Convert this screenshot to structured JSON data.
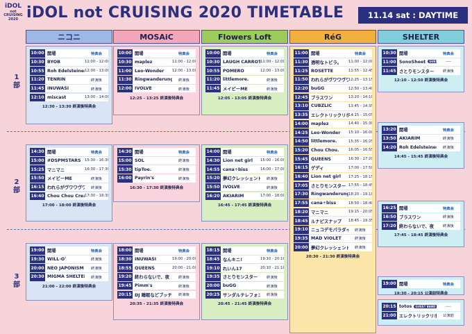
{
  "logo": {
    "line1": "iDOL",
    "line2": "not CRUISING",
    "line3": "2020"
  },
  "title": "iDOL not CRUISING 2020 TIMETABLE",
  "date": "11.14 sat : DAYTIME",
  "colors": {
    "navy": "#2a2f7e"
  },
  "parts": [
    "1\n部",
    "2\n部",
    "3\n部"
  ],
  "venues": [
    {
      "name": "ニコニ",
      "header_bg": "#9db8e6",
      "block_bg": "#d9e4f5",
      "header_color": "#2a2f7e"
    },
    {
      "name": "MOSAiC",
      "header_bg": "#f3a8b9",
      "block_bg": "#f9d3dd",
      "header_color": "#1b1f4a"
    },
    {
      "name": "Flowers Loft",
      "header_bg": "#9ccc5c",
      "block_bg": "#d9eec0",
      "header_color": "#1b1f4a"
    },
    {
      "name": "RéG",
      "header_bg": "#f2b13c",
      "block_bg": "#fbe5a8",
      "header_color": "#1b1f4a"
    },
    {
      "name": "SHELTER",
      "header_bg": "#7fd0dc",
      "block_bg": "#cdeef2",
      "header_color": "#1b1f4a"
    }
  ],
  "blocks": [
    {
      "venue": 0,
      "rows": [
        {
          "t": "10:00",
          "n": "開場",
          "s": "特典会"
        },
        {
          "t": "10:30",
          "n": "BYOB",
          "s": "11:00 - 12:00"
        },
        {
          "t": "10:55",
          "n": "Roh Edelsteinen",
          "s": "12:00 - 13:00"
        },
        {
          "t": "11:20",
          "n": "TENRIN",
          "s": "終演後"
        },
        {
          "t": "11:45",
          "n": "INUWASI",
          "s": "終演後"
        },
        {
          "t": "12:10",
          "n": "miscast",
          "s": "13:00 - 14:00"
        }
      ],
      "footer": "12:30 - 13:30 終演後特典会"
    },
    {
      "venue": 1,
      "rows": [
        {
          "t": "10:00",
          "n": "開場",
          "s": "特典会"
        },
        {
          "t": "10:30",
          "n": "maplez",
          "s": "11:00 - 12:00"
        },
        {
          "t": "11:00",
          "n": "Leo-Wonder",
          "s": "12:00 - 13:00"
        },
        {
          "t": "11:30",
          "n": "Ringwanderung",
          "s": "終演後"
        },
        {
          "t": "12:00",
          "n": "IVOLVE",
          "s": "終演後"
        }
      ],
      "footer": "12:25 - 13:25 終演後特典会"
    },
    {
      "venue": 2,
      "rows": [
        {
          "t": "10:00",
          "n": "開場",
          "s": "特典会"
        },
        {
          "t": "10:30",
          "n": "LAUGH CARROT",
          "s": "11:00 - 12:00"
        },
        {
          "t": "10:55",
          "n": "POMERO",
          "s": "12:00 - 13:00"
        },
        {
          "t": "11:20",
          "n": "littlemore.",
          "s": "終演後"
        },
        {
          "t": "11:45",
          "n": "メイビーME",
          "s": "終演後"
        }
      ],
      "footer": "12:05 - 13:05 終演後特典会"
    },
    {
      "venue": 4,
      "rows": [
        {
          "t": "10:30",
          "n": "開場",
          "s": "特典会"
        },
        {
          "t": "11:00",
          "n": "SonoSheet",
          "s": "----",
          "badge": "GUEST BAND"
        },
        {
          "t": "11:45",
          "n": "さとりモンスター",
          "s": "終演後"
        }
      ],
      "footer": "12:10 - 12:50 終演後特典会"
    },
    {
      "venue": 0,
      "rows": [
        {
          "t": "14:30",
          "n": "開場",
          "s": "特典会"
        },
        {
          "t": "15:00",
          "n": "#DSPMSTARS",
          "s": "15:30 - 16:30"
        },
        {
          "t": "15:25",
          "n": "マニマニ",
          "s": "16:30 - 17:30"
        },
        {
          "t": "15:50",
          "n": "メイビーME",
          "s": "終演後"
        },
        {
          "t": "16:15",
          "n": "われらがヴワワヴワーヴワ",
          "s": "終演後"
        },
        {
          "t": "16:40",
          "n": "Chou Chou Cream",
          "s": "17:30 - 18:30"
        }
      ],
      "footer": "17:00 - 18:00 終演後特典会"
    },
    {
      "venue": 1,
      "rows": [
        {
          "t": "14:30",
          "n": "開場",
          "s": "特典会"
        },
        {
          "t": "15:00",
          "n": "SOL",
          "s": "終演後"
        },
        {
          "t": "15:30",
          "n": "tipToe.",
          "s": "終演後"
        },
        {
          "t": "16:00",
          "n": "Payrin's",
          "s": "終演後"
        }
      ],
      "footer": "16:30 - 17:30 終演後特典会"
    },
    {
      "venue": 2,
      "rows": [
        {
          "t": "14:00",
          "n": "開場",
          "s": "特典会"
        },
        {
          "t": "14:30",
          "n": "Lion net girl",
          "s": "15:00 - 16:00"
        },
        {
          "t": "14:55",
          "n": "cana÷biss",
          "s": "16:00 - 17:00"
        },
        {
          "t": "15:20",
          "n": "夢幻クレッシェンド",
          "s": "終演後"
        },
        {
          "t": "15:50",
          "n": "IVOLVE",
          "s": "終演後"
        },
        {
          "t": "16:20",
          "n": "AKIARIM",
          "s": "17:00 - 18:00"
        }
      ],
      "footer": "16:45 - 17:45 終演後特典会"
    },
    {
      "venue": 4,
      "rows": [
        {
          "t": "13:20",
          "n": "開場",
          "s": "特典会"
        },
        {
          "t": "13:50",
          "n": "AKIARIM",
          "s": "終演後"
        },
        {
          "t": "14:20",
          "n": "Roh Edelsteinen",
          "s": "終演後"
        }
      ],
      "footer": "14:45 - 15:45 終演後特典会"
    },
    {
      "venue": 4,
      "rows": [
        {
          "t": "16:25",
          "n": "開場",
          "s": "特典会"
        },
        {
          "t": "16:50",
          "n": "ブラスワン",
          "s": "終演後"
        },
        {
          "t": "17:20",
          "n": "終わらないで、夜",
          "s": "終演後"
        }
      ],
      "footer": "17:45 - 18:45 終演後特典会"
    },
    {
      "venue": 0,
      "rows": [
        {
          "t": "19:00",
          "n": "開場",
          "s": "特典会"
        },
        {
          "t": "19:30",
          "n": "WILL-O'",
          "s": "終演後"
        },
        {
          "t": "20:00",
          "n": "NEO JAPONISM",
          "s": "終演後"
        },
        {
          "t": "20:30",
          "n": "MIGMA SHELTER",
          "s": "終演後"
        }
      ],
      "footer": "21:00 - 22:00 終演後特典会"
    },
    {
      "venue": 1,
      "rows": [
        {
          "t": "18:00",
          "n": "開場",
          "s": "特典会"
        },
        {
          "t": "18:30",
          "n": "INUWASI",
          "s": "19:00 - 20:00"
        },
        {
          "t": "18:55",
          "n": "QUEENS",
          "s": "20:00 - 21:00"
        },
        {
          "t": "19:20",
          "n": "終わらないで、夜",
          "s": "終演後"
        },
        {
          "t": "19:45",
          "n": "Pimm's",
          "s": "終演後"
        },
        {
          "t": "20:15",
          "n": "DJ 睡眠などブッチサマーズ",
          "s": "終演後"
        }
      ],
      "footer": "20:35 - 21:35 終演後特典会"
    },
    {
      "venue": 2,
      "rows": [
        {
          "t": "18:15",
          "n": "開場",
          "s": "特典会"
        },
        {
          "t": "18:45",
          "n": "なんキニ!",
          "s": "19:10 - 20:10"
        },
        {
          "t": "19:10",
          "n": "れいん17",
          "s": "20:10 - 21:10"
        },
        {
          "t": "19:35",
          "n": "さとりモンスター",
          "s": "終演後"
        },
        {
          "t": "20:00",
          "n": "buGG",
          "s": "終演後"
        },
        {
          "t": "20:25",
          "n": "サンダルテレフォン",
          "s": "終演後"
        }
      ],
      "footer": "20:45 - 21:45 終演後特典会"
    },
    {
      "venue": 4,
      "rows": [
        {
          "t": "19:00",
          "n": "開場",
          "s": "特典会"
        }
      ],
      "footer": "19:30 - 20:15 公演前特典会"
    },
    {
      "venue": 4,
      "rows": [
        {
          "t": "20:15",
          "n": "totos",
          "s": "----",
          "badge": "GUEST BAND"
        },
        {
          "t": "21:00",
          "n": "エレクトリックリボン",
          "s": "公演前"
        }
      ],
      "footer": ""
    },
    {
      "venue": 3,
      "rows": [
        {
          "t": "11:00",
          "n": "開場",
          "s": "特典会"
        },
        {
          "t": "11:30",
          "n": "透明なトビラ。",
          "s": "11:00 - 12:00"
        },
        {
          "t": "11:25",
          "n": "ROSETTE",
          "s": "11:55 - 12:45"
        },
        {
          "t": "11:50",
          "n": "われらがヴワワヴワーヴワ",
          "s": "12:25 - 13:15"
        },
        {
          "t": "12:20",
          "n": "buGG",
          "s": "12:50 - 13:40"
        },
        {
          "t": "12:45",
          "n": "ブラスワン",
          "s": "13:20 - 14:10"
        },
        {
          "t": "13:10",
          "n": "CUBZLIC",
          "s": "13:45 - 14:35"
        },
        {
          "t": "13:35",
          "n": "エレクトリックリボン",
          "s": "14:15 - 15:05"
        },
        {
          "t": "14:00",
          "n": "maplez",
          "s": "14:40 - 15:30"
        },
        {
          "t": "14:25",
          "n": "Leo-Wonder",
          "s": "15:10 - 16:00"
        },
        {
          "t": "14:50",
          "n": "littlemore.",
          "s": "15:35 - 16:25"
        },
        {
          "t": "15:20",
          "n": "Chou Chou.",
          "s": "16:05 - 16:55"
        },
        {
          "t": "15:45",
          "n": "QUEENS",
          "s": "16:30 - 17:20"
        },
        {
          "t": "16:15",
          "n": "ゲディ",
          "s": "17:00 - 17:50"
        },
        {
          "t": "16:40",
          "n": "Lion net girl",
          "s": "17:25 - 18:15"
        },
        {
          "t": "17:05",
          "n": "さとりモンスター",
          "s": "17:55 - 18:45"
        },
        {
          "t": "17:30",
          "n": "Ringwanderung",
          "s": "18:20 - 19:10"
        },
        {
          "t": "17:55",
          "n": "cana÷biss",
          "s": "18:50 - 18:40"
        },
        {
          "t": "18:20",
          "n": "マニマニ",
          "s": "19:15 - 20:05"
        },
        {
          "t": "18:45",
          "n": "ルナピスナップ",
          "s": "18:45 - 19:35"
        },
        {
          "t": "19:10",
          "n": "ニュコデモパラダイス",
          "s": "終演後"
        },
        {
          "t": "19:35",
          "n": "MAD VIOLET",
          "s": "終演後"
        },
        {
          "t": "20:00",
          "n": "夢幻クレッシェンド",
          "s": "終演後"
        }
      ],
      "footer": "20:30 - 21:30 終演後特典会"
    }
  ]
}
